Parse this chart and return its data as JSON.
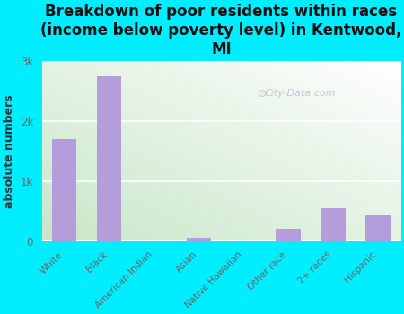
{
  "categories": [
    "White",
    "Black",
    "American Indian",
    "Asian",
    "Native Hawaiian",
    "Other race",
    "2+ races",
    "Hispanic"
  ],
  "values": [
    1700,
    2750,
    0,
    50,
    0,
    200,
    550,
    430
  ],
  "bar_color": "#b39ddb",
  "title": "Breakdown of poor residents within races\n(income below poverty level) in Kentwood,\nMI",
  "ylabel": "absolute numbers",
  "ylim": [
    0,
    3000
  ],
  "yticks": [
    0,
    1000,
    2000,
    3000
  ],
  "ytick_labels": [
    "0",
    "1k",
    "2k",
    "3k"
  ],
  "background_color": "#00eeff",
  "plot_bg_color": "#e8f5e9",
  "watermark": "City-Data.com",
  "title_fontsize": 12,
  "ylabel_fontsize": 9,
  "tick_label_color": "#666666",
  "title_color": "#111111"
}
